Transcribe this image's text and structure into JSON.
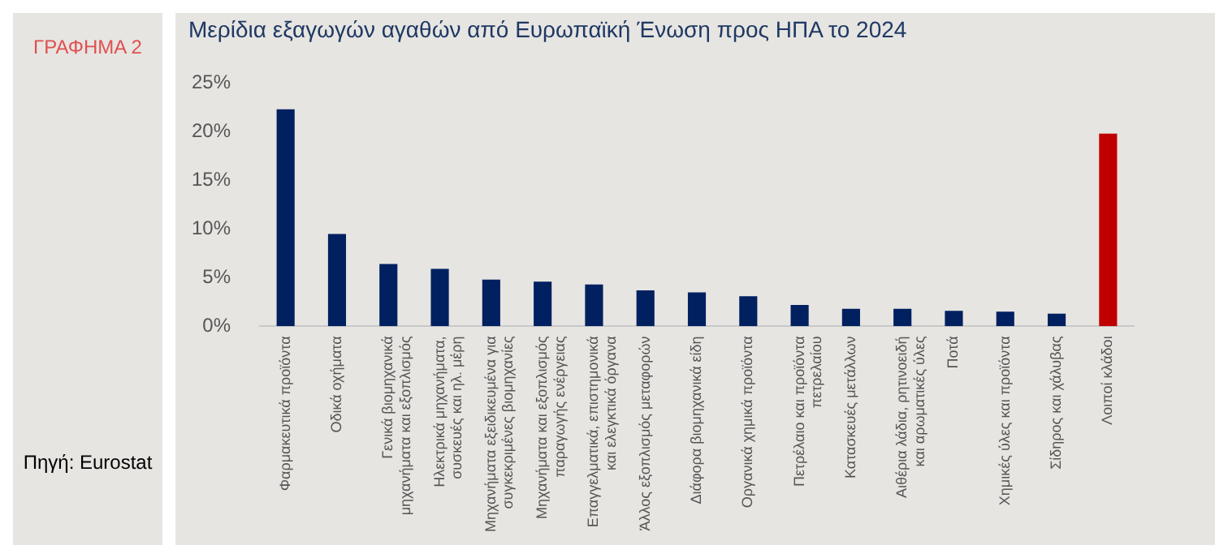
{
  "chart_data": {
    "type": "bar",
    "title": "Μερίδια εξαγωγών αγαθών από Ευρωπαϊκή Ένωση προς ΗΠΑ το 2024",
    "annotations": [
      "ΓΡΑΦΗΜΑ 2",
      "Πηγή: Eurostat"
    ],
    "categories": [
      "Φαρμακευτικά προϊόντα",
      "Οδικά οχήματα",
      "Γενικά βιομηχανικά μηχανήματα και εξοπλισμός",
      "Ηλεκτρικά μηχανήματα, συσκευές και ηλ. μέρη",
      "Μηχανήματα εξειδικευμένα για συγκεκριμένες βιομηχανίες",
      "Μηχανήματα και εξοπλισμός παραγωγής ενέργειας",
      "Επαγγελματικά, επιστημονικά και ελεγκτικά όργανα",
      "Άλλος εξοπλισμός μεταφορών",
      "Διάφορα βιομηχανικά είδη",
      "Οργανικά χημικά προϊόντα",
      "Πετρέλαιο και προϊόντα πετρελαίου",
      "Κατασκευές μετάλλων",
      "Αιθέρια λάδια, ρητινοειδή και αρωματικές ύλες",
      "Ποτά",
      "Χημικές ύλες και προϊόντα",
      "Σίδηρος και χάλυβας",
      "Λοιποί κλάδοι"
    ],
    "values": [
      22.3,
      9.5,
      6.4,
      5.9,
      4.8,
      4.6,
      4.3,
      3.7,
      3.5,
      3.1,
      2.2,
      1.8,
      1.8,
      1.6,
      1.5,
      1.3,
      19.8
    ],
    "colors": [
      "#002060",
      "#002060",
      "#002060",
      "#002060",
      "#002060",
      "#002060",
      "#002060",
      "#002060",
      "#002060",
      "#002060",
      "#002060",
      "#002060",
      "#002060",
      "#002060",
      "#002060",
      "#002060",
      "#c00000"
    ],
    "ylim": [
      0,
      25
    ],
    "yticks": [
      {
        "value": 0,
        "label": "0%"
      },
      {
        "value": 5,
        "label": "5%"
      },
      {
        "value": 10,
        "label": "10%"
      },
      {
        "value": 15,
        "label": "15%"
      },
      {
        "value": 20,
        "label": "20%"
      },
      {
        "value": 25,
        "label": "25%"
      }
    ],
    "grid": false,
    "legend": false
  }
}
